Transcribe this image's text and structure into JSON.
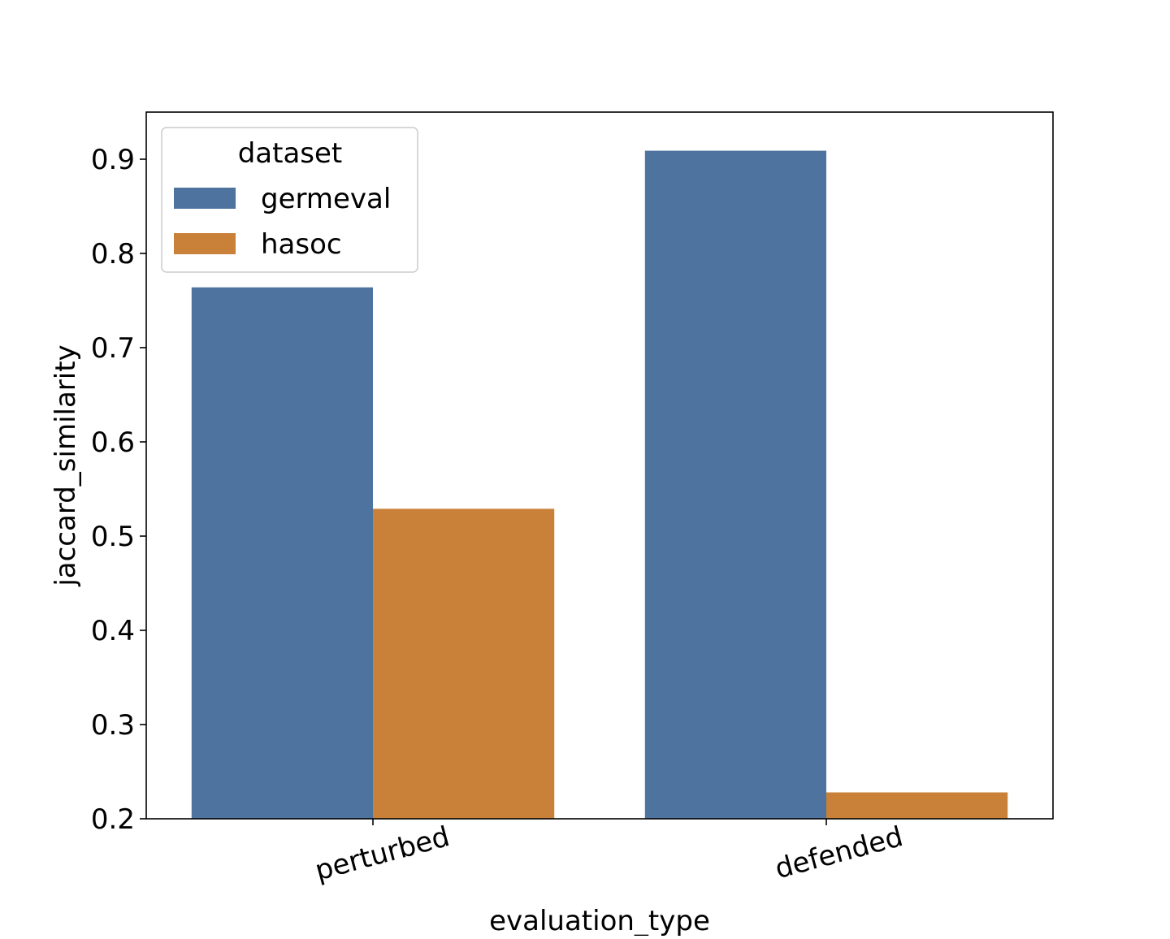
{
  "chart_data": {
    "type": "bar",
    "xlabel": "evaluation_type",
    "ylabel": "jaccard_similarity",
    "categories": [
      "perturbed",
      "defended"
    ],
    "series": [
      {
        "name": "germeval",
        "color": "#4e739f",
        "values": [
          0.764,
          0.909
        ]
      },
      {
        "name": "hasoc",
        "color": "#c98139",
        "values": [
          0.529,
          0.228
        ]
      }
    ],
    "ylim": [
      0.2,
      0.95
    ],
    "yticks": [
      0.2,
      0.3,
      0.4,
      0.5,
      0.6,
      0.7,
      0.8,
      0.9
    ],
    "ytick_labels": [
      "0.2",
      "0.3",
      "0.4",
      "0.5",
      "0.6",
      "0.7",
      "0.8",
      "0.9"
    ],
    "legend": {
      "title": "dataset",
      "placement": "top-left"
    },
    "grid": false
  }
}
